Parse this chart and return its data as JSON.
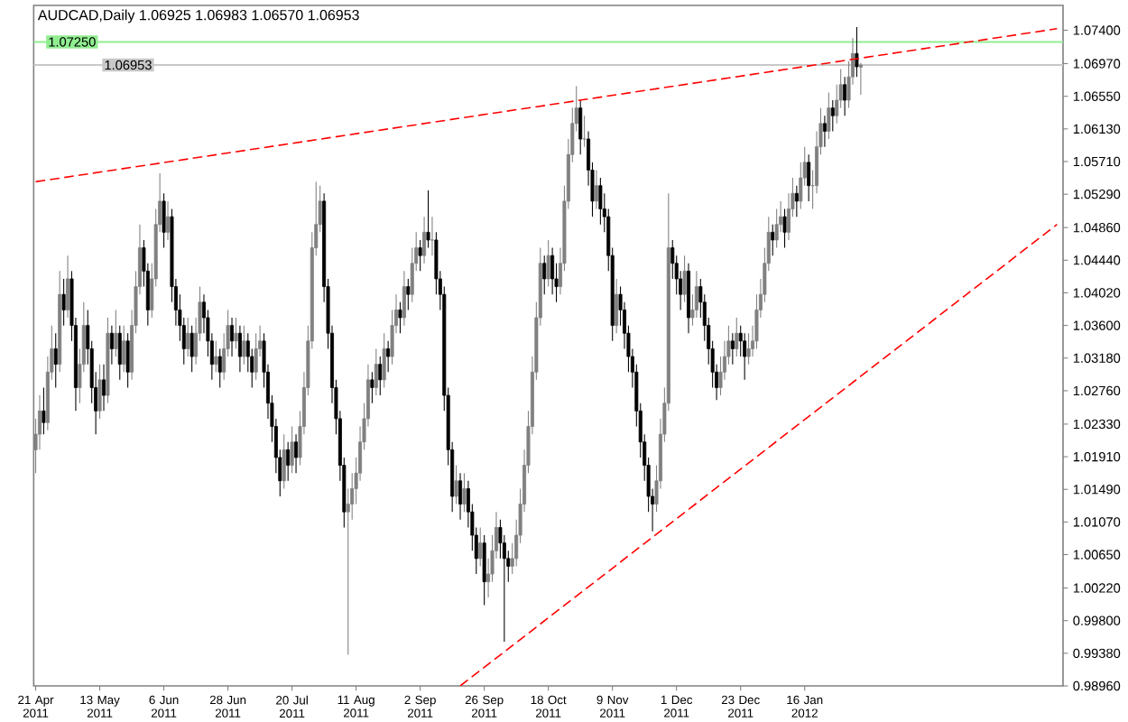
{
  "chart_data": {
    "type": "candlestick",
    "title": "AUDCAD,Daily  1.06925 1.06983 1.06570 1.06953",
    "categories": [
      "21 Apr 2011",
      null,
      null,
      null,
      null,
      null,
      null,
      null,
      null,
      null,
      null,
      null,
      null,
      null,
      null,
      null,
      "13 May 2011",
      null,
      null,
      null,
      null,
      null,
      null,
      null,
      null,
      null,
      null,
      null,
      null,
      null,
      null,
      null,
      "6 Jun 2011",
      null,
      null,
      null,
      null,
      null,
      null,
      null,
      null,
      null,
      null,
      null,
      null,
      null,
      null,
      null,
      "28 Jun 2011",
      null,
      null,
      null,
      null,
      null,
      null,
      null,
      null,
      null,
      null,
      null,
      null,
      null,
      null,
      null,
      "20 Jul 2011",
      null,
      null,
      null,
      null,
      null,
      null,
      null,
      null,
      null,
      null,
      null,
      null,
      null,
      null,
      null,
      "11 Aug 2011",
      null,
      null,
      null,
      null,
      null,
      null,
      null,
      null,
      null,
      null,
      null,
      null,
      null,
      null,
      null,
      "2 Sep 2011",
      null,
      null,
      null,
      null,
      null,
      null,
      null,
      null,
      null,
      null,
      null,
      null,
      null,
      null,
      null,
      "26 Sep 2011",
      null,
      null,
      null,
      null,
      null,
      null,
      null,
      null,
      null,
      null,
      null,
      null,
      null,
      null,
      null,
      "18 Oct 2011",
      null,
      null,
      null,
      null,
      null,
      null,
      null,
      null,
      null,
      null,
      null,
      null,
      null,
      null,
      null,
      "9 Nov 2011",
      null,
      null,
      null,
      null,
      null,
      null,
      null,
      null,
      null,
      null,
      null,
      null,
      null,
      null,
      null,
      "1 Dec 2011",
      null,
      null,
      null,
      null,
      null,
      null,
      null,
      null,
      null,
      null,
      null,
      null,
      null,
      null,
      null,
      "23 Dec 2011",
      null,
      null,
      null,
      null,
      null,
      null,
      null,
      null,
      null,
      null,
      null,
      null,
      null,
      null,
      null,
      "16 Jan 2012",
      null,
      null,
      null,
      null,
      null,
      null,
      null,
      null,
      null,
      null,
      null,
      null,
      null,
      null,
      null,
      null,
      null,
      null,
      null,
      null,
      null,
      null,
      null,
      null,
      null,
      null,
      null,
      null,
      null,
      null,
      null,
      null,
      null,
      null,
      null,
      null,
      null,
      null,
      null,
      null,
      null,
      null,
      null,
      null,
      null,
      null,
      null,
      null,
      null,
      null,
      null,
      null,
      null,
      null,
      null,
      null,
      null,
      null,
      null,
      null,
      null,
      null,
      null,
      null
    ],
    "ohlc": [
      [
        1.02,
        1.024,
        1.017,
        1.022
      ],
      [
        1.022,
        1.027,
        1.02,
        1.025
      ],
      [
        1.025,
        1.028,
        1.022,
        1.0235
      ],
      [
        1.0235,
        1.032,
        1.0225,
        1.03
      ],
      [
        1.03,
        1.036,
        1.029,
        1.033
      ],
      [
        1.033,
        1.035,
        1.028,
        1.031
      ],
      [
        1.031,
        1.043,
        1.03,
        1.04
      ],
      [
        1.04,
        1.042,
        1.036,
        1.038
      ],
      [
        1.038,
        1.045,
        1.037,
        1.042
      ],
      [
        1.042,
        1.043,
        1.034,
        1.036
      ],
      [
        1.036,
        1.037,
        1.025,
        1.028
      ],
      [
        1.028,
        1.033,
        1.026,
        1.031
      ],
      [
        1.031,
        1.039,
        1.03,
        1.036
      ],
      [
        1.036,
        1.038,
        1.031,
        1.033
      ],
      [
        1.033,
        1.034,
        1.026,
        1.028
      ],
      [
        1.028,
        1.03,
        1.022,
        1.025
      ],
      [
        1.025,
        1.031,
        1.024,
        1.029
      ],
      [
        1.029,
        1.031,
        1.025,
        1.027
      ],
      [
        1.027,
        1.037,
        1.026,
        1.035
      ],
      [
        1.035,
        1.036,
        1.031,
        1.033
      ],
      [
        1.033,
        1.038,
        1.032,
        1.035
      ],
      [
        1.035,
        1.036,
        1.029,
        1.031
      ],
      [
        1.031,
        1.036,
        1.03,
        1.034
      ],
      [
        1.034,
        1.035,
        1.028,
        1.03
      ],
      [
        1.03,
        1.038,
        1.029,
        1.036
      ],
      [
        1.036,
        1.043,
        1.035,
        1.041
      ],
      [
        1.041,
        1.049,
        1.04,
        1.046
      ],
      [
        1.046,
        1.047,
        1.041,
        1.043
      ],
      [
        1.043,
        1.044,
        1.036,
        1.038
      ],
      [
        1.038,
        1.044,
        1.037,
        1.042
      ],
      [
        1.042,
        1.051,
        1.041,
        1.049
      ],
      [
        1.049,
        1.0556,
        1.048,
        1.052
      ],
      [
        1.052,
        1.053,
        1.046,
        1.048
      ],
      [
        1.048,
        1.052,
        1.047,
        1.05
      ],
      [
        1.05,
        1.051,
        1.039,
        1.041
      ],
      [
        1.041,
        1.042,
        1.036,
        1.038
      ],
      [
        1.038,
        1.04,
        1.034,
        1.036
      ],
      [
        1.036,
        1.037,
        1.031,
        1.033
      ],
      [
        1.033,
        1.037,
        1.032,
        1.035
      ],
      [
        1.035,
        1.036,
        1.03,
        1.032
      ],
      [
        1.032,
        1.037,
        1.031,
        1.035
      ],
      [
        1.035,
        1.041,
        1.034,
        1.039
      ],
      [
        1.039,
        1.04,
        1.035,
        1.037
      ],
      [
        1.037,
        1.038,
        1.032,
        1.034
      ],
      [
        1.034,
        1.035,
        1.029,
        1.031
      ],
      [
        1.031,
        1.034,
        1.03,
        1.032
      ],
      [
        1.032,
        1.033,
        1.028,
        1.03
      ],
      [
        1.03,
        1.035,
        1.029,
        1.033
      ],
      [
        1.033,
        1.038,
        1.032,
        1.036
      ],
      [
        1.036,
        1.037,
        1.032,
        1.034
      ],
      [
        1.034,
        1.037,
        1.033,
        1.035
      ],
      [
        1.035,
        1.036,
        1.03,
        1.032
      ],
      [
        1.032,
        1.036,
        1.031,
        1.034
      ],
      [
        1.034,
        1.035,
        1.03,
        1.032
      ],
      [
        1.032,
        1.033,
        1.028,
        1.03
      ],
      [
        1.03,
        1.035,
        1.029,
        1.033
      ],
      [
        1.033,
        1.036,
        1.032,
        1.034
      ],
      [
        1.034,
        1.035,
        1.028,
        1.03
      ],
      [
        1.03,
        1.031,
        1.024,
        1.026
      ],
      [
        1.026,
        1.027,
        1.021,
        1.023
      ],
      [
        1.023,
        1.024,
        1.017,
        1.019
      ],
      [
        1.019,
        1.02,
        1.014,
        1.016
      ],
      [
        1.016,
        1.022,
        1.015,
        1.02
      ],
      [
        1.02,
        1.021,
        1.016,
        1.018
      ],
      [
        1.018,
        1.023,
        1.017,
        1.021
      ],
      [
        1.021,
        1.022,
        1.017,
        1.019
      ],
      [
        1.019,
        1.025,
        1.018,
        1.023
      ],
      [
        1.023,
        1.03,
        1.022,
        1.028
      ],
      [
        1.028,
        1.036,
        1.027,
        1.034
      ],
      [
        1.034,
        1.048,
        1.033,
        1.046
      ],
      [
        1.046,
        1.0545,
        1.045,
        1.049
      ],
      [
        1.049,
        1.054,
        1.048,
        1.052
      ],
      [
        1.052,
        1.053,
        1.039,
        1.041
      ],
      [
        1.041,
        1.042,
        1.033,
        1.035
      ],
      [
        1.035,
        1.036,
        1.026,
        1.028
      ],
      [
        1.028,
        1.029,
        1.022,
        1.024
      ],
      [
        1.024,
        1.025,
        1.016,
        1.018
      ],
      [
        1.018,
        1.019,
        1.01,
        1.012
      ],
      [
        1.012,
        1.015,
        0.9936,
        1.013
      ],
      [
        1.013,
        1.017,
        1.011,
        1.015
      ],
      [
        1.015,
        1.019,
        1.013,
        1.017
      ],
      [
        1.017,
        1.023,
        1.016,
        1.021
      ],
      [
        1.021,
        1.026,
        1.02,
        1.024
      ],
      [
        1.024,
        1.031,
        1.023,
        1.029
      ],
      [
        1.029,
        1.03,
        1.026,
        1.028
      ],
      [
        1.028,
        1.033,
        1.027,
        1.031
      ],
      [
        1.031,
        1.032,
        1.027,
        1.029
      ],
      [
        1.029,
        1.035,
        1.028,
        1.033
      ],
      [
        1.033,
        1.034,
        1.03,
        1.032
      ],
      [
        1.032,
        1.038,
        1.031,
        1.036
      ],
      [
        1.036,
        1.04,
        1.035,
        1.038
      ],
      [
        1.038,
        1.039,
        1.035,
        1.037
      ],
      [
        1.037,
        1.043,
        1.036,
        1.041
      ],
      [
        1.041,
        1.042,
        1.038,
        1.04
      ],
      [
        1.04,
        1.046,
        1.039,
        1.044
      ],
      [
        1.044,
        1.048,
        1.043,
        1.046
      ],
      [
        1.046,
        1.047,
        1.043,
        1.045
      ],
      [
        1.045,
        1.05,
        1.044,
        1.048
      ],
      [
        1.048,
        1.0534,
        1.046,
        1.047
      ],
      [
        1.047,
        1.05,
        1.045,
        1.047
      ],
      [
        1.047,
        1.048,
        1.04,
        1.042
      ],
      [
        1.042,
        1.043,
        1.038,
        1.04
      ],
      [
        1.04,
        1.041,
        1.025,
        1.027
      ],
      [
        1.027,
        1.028,
        1.018,
        1.02
      ],
      [
        1.02,
        1.021,
        1.012,
        1.014
      ],
      [
        1.014,
        1.018,
        1.013,
        1.016
      ],
      [
        1.016,
        1.017,
        1.011,
        1.013
      ],
      [
        1.013,
        1.017,
        1.012,
        1.015
      ],
      [
        1.015,
        1.016,
        1.01,
        1.012
      ],
      [
        1.012,
        1.013,
        1.007,
        1.009
      ],
      [
        1.009,
        1.01,
        1.004,
        1.006
      ],
      [
        1.006,
        1.01,
        1.005,
        1.008
      ],
      [
        1.008,
        1.009,
        1.0,
        1.003
      ],
      [
        1.003,
        1.006,
        1.001,
        1.004
      ],
      [
        1.004,
        1.009,
        1.003,
        1.007
      ],
      [
        1.007,
        1.012,
        1.006,
        1.01
      ],
      [
        1.01,
        1.011,
        1.006,
        1.008
      ],
      [
        1.008,
        1.009,
        0.9953,
        1.006
      ],
      [
        1.006,
        1.007,
        1.003,
        1.005
      ],
      [
        1.005,
        1.008,
        1.004,
        1.006
      ],
      [
        1.006,
        1.011,
        1.005,
        1.009
      ],
      [
        1.009,
        1.015,
        1.008,
        1.013
      ],
      [
        1.013,
        1.02,
        1.012,
        1.018
      ],
      [
        1.018,
        1.025,
        1.017,
        1.023
      ],
      [
        1.023,
        1.032,
        1.022,
        1.03
      ],
      [
        1.03,
        1.039,
        1.029,
        1.037
      ],
      [
        1.037,
        1.046,
        1.036,
        1.044
      ],
      [
        1.044,
        1.045,
        1.04,
        1.042
      ],
      [
        1.042,
        1.047,
        1.041,
        1.045
      ],
      [
        1.045,
        1.046,
        1.04,
        1.042
      ],
      [
        1.042,
        1.044,
        1.039,
        1.041
      ],
      [
        1.041,
        1.046,
        1.04,
        1.044
      ],
      [
        1.044,
        1.054,
        1.043,
        1.052
      ],
      [
        1.052,
        1.06,
        1.051,
        1.058
      ],
      [
        1.058,
        1.064,
        1.057,
        1.062
      ],
      [
        1.062,
        1.0668,
        1.061,
        1.064
      ],
      [
        1.064,
        1.065,
        1.058,
        1.06
      ],
      [
        1.06,
        1.063,
        1.059,
        1.06
      ],
      [
        1.06,
        1.061,
        1.054,
        1.056
      ],
      [
        1.056,
        1.057,
        1.05,
        1.052
      ],
      [
        1.052,
        1.056,
        1.051,
        1.054
      ],
      [
        1.054,
        1.055,
        1.049,
        1.051
      ],
      [
        1.051,
        1.053,
        1.048,
        1.05
      ],
      [
        1.05,
        1.051,
        1.043,
        1.045
      ],
      [
        1.045,
        1.046,
        1.034,
        1.036
      ],
      [
        1.036,
        1.042,
        1.035,
        1.04
      ],
      [
        1.04,
        1.041,
        1.036,
        1.038
      ],
      [
        1.038,
        1.039,
        1.033,
        1.035
      ],
      [
        1.035,
        1.036,
        1.03,
        1.032
      ],
      [
        1.032,
        1.033,
        1.028,
        1.03
      ],
      [
        1.03,
        1.031,
        1.023,
        1.025
      ],
      [
        1.025,
        1.026,
        1.019,
        1.021
      ],
      [
        1.021,
        1.022,
        1.016,
        1.018
      ],
      [
        1.018,
        1.019,
        1.012,
        1.014
      ],
      [
        1.014,
        1.015,
        1.0095,
        1.013
      ],
      [
        1.013,
        1.018,
        1.012,
        1.016
      ],
      [
        1.016,
        1.024,
        1.015,
        1.022
      ],
      [
        1.022,
        1.028,
        1.021,
        1.026
      ],
      [
        1.026,
        1.053,
        1.025,
        1.046
      ],
      [
        1.046,
        1.047,
        1.042,
        1.044
      ],
      [
        1.044,
        1.045,
        1.04,
        1.042
      ],
      [
        1.042,
        1.043,
        1.038,
        1.04
      ],
      [
        1.04,
        1.045,
        1.039,
        1.043
      ],
      [
        1.043,
        1.044,
        1.035,
        1.037
      ],
      [
        1.037,
        1.04,
        1.036,
        1.038
      ],
      [
        1.038,
        1.043,
        1.037,
        1.041
      ],
      [
        1.041,
        1.042,
        1.037,
        1.039
      ],
      [
        1.039,
        1.04,
        1.034,
        1.036
      ],
      [
        1.036,
        1.037,
        1.031,
        1.033
      ],
      [
        1.033,
        1.034,
        1.028,
        1.03
      ],
      [
        1.03,
        1.031,
        1.0264,
        1.028
      ],
      [
        1.028,
        1.032,
        1.027,
        1.03
      ],
      [
        1.03,
        1.034,
        1.029,
        1.032
      ],
      [
        1.032,
        1.036,
        1.031,
        1.034
      ],
      [
        1.034,
        1.035,
        1.031,
        1.033
      ],
      [
        1.033,
        1.037,
        1.032,
        1.035
      ],
      [
        1.035,
        1.036,
        1.032,
        1.034
      ],
      [
        1.034,
        1.035,
        1.029,
        1.032
      ],
      [
        1.032,
        1.035,
        1.031,
        1.033
      ],
      [
        1.033,
        1.036,
        1.032,
        1.034
      ],
      [
        1.034,
        1.04,
        1.033,
        1.038
      ],
      [
        1.038,
        1.042,
        1.037,
        1.04
      ],
      [
        1.04,
        1.046,
        1.039,
        1.044
      ],
      [
        1.044,
        1.05,
        1.043,
        1.048
      ],
      [
        1.048,
        1.049,
        1.045,
        1.047
      ],
      [
        1.047,
        1.051,
        1.046,
        1.049
      ],
      [
        1.049,
        1.052,
        1.048,
        1.05
      ],
      [
        1.05,
        1.051,
        1.046,
        1.048
      ],
      [
        1.048,
        1.053,
        1.047,
        1.051
      ],
      [
        1.051,
        1.055,
        1.05,
        1.053
      ],
      [
        1.053,
        1.054,
        1.05,
        1.052
      ],
      [
        1.052,
        1.057,
        1.051,
        1.055
      ],
      [
        1.055,
        1.059,
        1.054,
        1.057
      ],
      [
        1.057,
        1.058,
        1.052,
        1.054
      ],
      [
        1.054,
        1.056,
        1.051,
        1.054
      ],
      [
        1.054,
        1.061,
        1.053,
        1.059
      ],
      [
        1.059,
        1.064,
        1.058,
        1.062
      ],
      [
        1.062,
        1.063,
        1.059,
        1.061
      ],
      [
        1.061,
        1.066,
        1.06,
        1.064
      ],
      [
        1.064,
        1.065,
        1.061,
        1.063
      ],
      [
        1.063,
        1.067,
        1.062,
        1.065
      ],
      [
        1.065,
        1.069,
        1.064,
        1.067
      ],
      [
        1.067,
        1.068,
        1.063,
        1.065
      ],
      [
        1.065,
        1.07,
        1.064,
        1.068
      ],
      [
        1.068,
        1.073,
        1.067,
        1.071
      ],
      [
        1.071,
        1.0744,
        1.068,
        1.0693
      ],
      [
        1.06925,
        1.06983,
        1.0657,
        1.06953
      ],
      null,
      null,
      null,
      null,
      null,
      null,
      null,
      null,
      null,
      null,
      null,
      null,
      null,
      null,
      null,
      null,
      null,
      null,
      null,
      null,
      null,
      null,
      null,
      null,
      null,
      null,
      null,
      null,
      null,
      null,
      null,
      null,
      null,
      null,
      null,
      null,
      null,
      null,
      null,
      null,
      null,
      null,
      null,
      null,
      null,
      null,
      null,
      null,
      null,
      null
    ],
    "series": [
      {
        "type": "line",
        "color": "#ff0000",
        "line_style": "dashed",
        "values": [
          1.0545,
          null,
          null,
          null,
          null,
          null,
          null,
          null,
          null,
          null,
          null,
          null,
          null,
          null,
          null,
          null,
          null,
          null,
          null,
          null,
          null,
          null,
          null,
          null,
          null,
          null,
          null,
          null,
          null,
          null,
          null,
          null,
          null,
          null,
          null,
          null,
          null,
          null,
          null,
          null,
          null,
          null,
          null,
          null,
          null,
          null,
          null,
          null,
          null,
          null,
          null,
          null,
          null,
          null,
          null,
          null,
          null,
          null,
          null,
          null,
          null,
          null,
          null,
          null,
          null,
          null,
          null,
          null,
          null,
          null,
          null,
          null,
          null,
          null,
          null,
          null,
          null,
          null,
          null,
          null,
          null,
          null,
          null,
          null,
          null,
          null,
          null,
          null,
          null,
          null,
          null,
          null,
          null,
          null,
          null,
          null,
          null,
          null,
          null,
          null,
          null,
          null,
          null,
          null,
          null,
          null,
          null,
          null,
          null,
          null,
          null,
          null,
          null,
          null,
          null,
          null,
          null,
          null,
          null,
          null,
          null,
          null,
          null,
          null,
          null,
          null,
          null,
          null,
          null,
          null,
          null,
          null,
          null,
          null,
          null,
          null,
          null,
          null,
          null,
          null,
          null,
          null,
          null,
          null,
          null,
          null,
          null,
          null,
          null,
          null,
          null,
          null,
          null,
          null,
          null,
          null,
          null,
          null,
          null,
          null,
          null,
          null,
          null,
          null,
          null,
          null,
          null,
          null,
          null,
          null,
          null,
          null,
          null,
          null,
          null,
          null,
          null,
          null,
          null,
          null,
          null,
          null,
          null,
          null,
          null,
          null,
          null,
          null,
          null,
          null,
          null,
          null,
          null,
          null,
          null,
          null,
          null,
          null,
          null,
          null,
          null,
          null,
          null,
          null,
          null,
          null,
          null,
          null,
          null,
          null,
          null,
          null,
          null,
          null,
          null,
          null,
          null,
          null,
          null,
          null,
          null,
          null,
          null,
          null,
          null,
          null,
          null,
          null,
          null,
          null,
          null,
          null,
          null,
          null,
          null,
          null,
          null,
          null,
          null,
          null,
          null,
          null,
          null,
          null,
          null,
          null,
          null,
          null,
          null,
          null,
          null,
          null,
          null,
          null,
          null,
          1.0742,
          null
        ]
      },
      {
        "type": "line",
        "color": "#ff0000",
        "line_style": "dashed",
        "values": [
          null,
          null,
          null,
          null,
          null,
          null,
          null,
          null,
          null,
          null,
          null,
          null,
          null,
          null,
          null,
          null,
          null,
          null,
          null,
          null,
          null,
          null,
          null,
          null,
          null,
          null,
          null,
          null,
          null,
          null,
          null,
          null,
          null,
          null,
          null,
          null,
          null,
          null,
          null,
          null,
          null,
          null,
          null,
          null,
          null,
          null,
          null,
          null,
          null,
          null,
          null,
          null,
          null,
          null,
          null,
          null,
          null,
          null,
          null,
          null,
          null,
          null,
          null,
          null,
          null,
          null,
          null,
          null,
          null,
          null,
          null,
          null,
          null,
          null,
          null,
          null,
          null,
          null,
          null,
          null,
          null,
          null,
          null,
          null,
          null,
          null,
          null,
          null,
          null,
          null,
          null,
          null,
          null,
          null,
          null,
          null,
          null,
          null,
          null,
          null,
          null,
          null,
          null,
          null,
          null,
          null,
          0.9896,
          null,
          null,
          null,
          null,
          null,
          null,
          null,
          null,
          null,
          null,
          null,
          null,
          null,
          null,
          null,
          null,
          null,
          null,
          null,
          null,
          null,
          null,
          null,
          null,
          null,
          null,
          null,
          null,
          null,
          null,
          null,
          null,
          null,
          null,
          null,
          null,
          null,
          null,
          null,
          null,
          null,
          null,
          null,
          null,
          null,
          null,
          null,
          null,
          null,
          null,
          null,
          null,
          null,
          null,
          null,
          null,
          null,
          null,
          null,
          null,
          null,
          null,
          null,
          null,
          null,
          null,
          null,
          null,
          null,
          null,
          null,
          null,
          null,
          null,
          null,
          null,
          null,
          null,
          null,
          null,
          null,
          null,
          null,
          null,
          null,
          null,
          null,
          null,
          null,
          null,
          null,
          null,
          null,
          null,
          null,
          null,
          null,
          null,
          null,
          null,
          null,
          null,
          null,
          null,
          null,
          null,
          null,
          null,
          null,
          null,
          null,
          null,
          null,
          null,
          null,
          null,
          null,
          null,
          null,
          null,
          null,
          null,
          null,
          null,
          null,
          null,
          null,
          null,
          null,
          null,
          null,
          null,
          null,
          null,
          null,
          null,
          null,
          null,
          null,
          null,
          null,
          null,
          null,
          null,
          null,
          null,
          null,
          null,
          1.049,
          null
        ]
      }
    ],
    "ref_lines": [
      {
        "axis": "y",
        "value": 1.0725,
        "label": "1.07250",
        "color": "#90ee90"
      },
      {
        "axis": "y",
        "value": 1.06953,
        "label": "1.06953",
        "color": "#c8c8c8"
      }
    ],
    "ylim": [
      0.9896,
      1.0772
    ],
    "yticks": [
      {
        "value": 1.074,
        "label": "1.07400"
      },
      {
        "value": 1.0697,
        "label": "1.06970"
      },
      {
        "value": 1.0655,
        "label": "1.06550"
      },
      {
        "value": 1.0613,
        "label": "1.06130"
      },
      {
        "value": 1.0571,
        "label": "1.05710"
      },
      {
        "value": 1.0529,
        "label": "1.05290"
      },
      {
        "value": 1.0486,
        "label": "1.04860"
      },
      {
        "value": 1.0444,
        "label": "1.04440"
      },
      {
        "value": 1.0402,
        "label": "1.04020"
      },
      {
        "value": 1.036,
        "label": "1.03600"
      },
      {
        "value": 1.0318,
        "label": "1.03180"
      },
      {
        "value": 1.0276,
        "label": "1.02760"
      },
      {
        "value": 1.0233,
        "label": "1.02330"
      },
      {
        "value": 1.0191,
        "label": "1.01910"
      },
      {
        "value": 1.0149,
        "label": "1.01490"
      },
      {
        "value": 1.0107,
        "label": "1.01070"
      },
      {
        "value": 1.0065,
        "label": "1.00650"
      },
      {
        "value": 1.0022,
        "label": "1.00220"
      },
      {
        "value": 0.998,
        "label": "0.99800"
      },
      {
        "value": 0.9938,
        "label": "0.99380"
      },
      {
        "value": 0.9896,
        "label": "0.98960"
      }
    ]
  }
}
